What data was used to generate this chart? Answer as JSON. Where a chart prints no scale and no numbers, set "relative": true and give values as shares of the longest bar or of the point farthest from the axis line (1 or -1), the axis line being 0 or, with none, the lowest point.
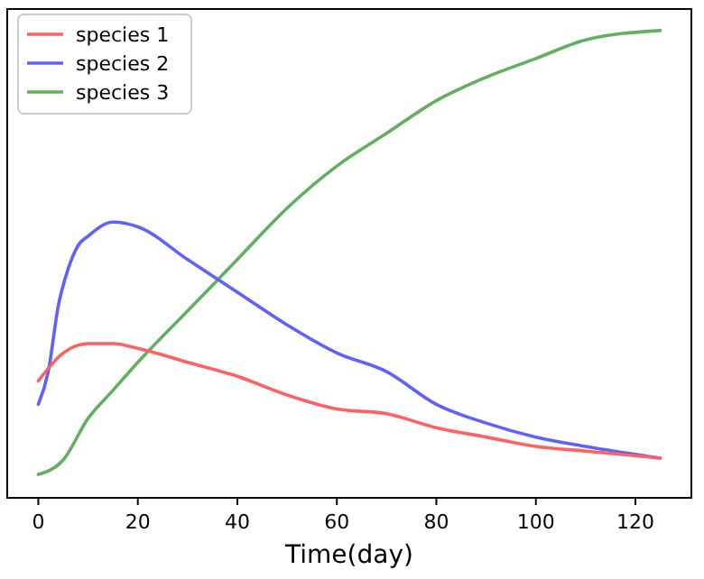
{
  "chart_data": {
    "type": "line",
    "xlabel": "Time(day)",
    "relative": true,
    "tick_labels": "x",
    "legend": "top left",
    "grid": false,
    "xlim": [
      -6.25,
      131.25
    ],
    "xticks": [
      0,
      20,
      40,
      60,
      80,
      100,
      120
    ],
    "series": [
      {
        "name": "species 1",
        "color": "#ff6060",
        "x": [
          0,
          5,
          10,
          15,
          20,
          30,
          40,
          50,
          60,
          70,
          80,
          90,
          100,
          110,
          125
        ],
        "values": [
          0.25,
          0.31,
          0.33,
          0.33,
          0.32,
          0.29,
          0.26,
          0.22,
          0.19,
          0.18,
          0.15,
          0.13,
          0.11,
          0.1,
          0.085
        ]
      },
      {
        "name": "species 2",
        "color": "#6060ff",
        "x": [
          0,
          2,
          4,
          6,
          8,
          10,
          15,
          20,
          30,
          40,
          50,
          60,
          70,
          80,
          90,
          100,
          110,
          125
        ],
        "values": [
          0.2,
          0.27,
          0.41,
          0.49,
          0.54,
          0.56,
          0.59,
          0.58,
          0.51,
          0.44,
          0.37,
          0.31,
          0.27,
          0.2,
          0.16,
          0.13,
          0.11,
          0.085
        ]
      },
      {
        "name": "species 3",
        "color": "#60b060",
        "x": [
          0,
          5,
          10,
          15,
          20,
          30,
          40,
          50,
          60,
          70,
          80,
          90,
          100,
          110,
          125
        ],
        "values": [
          0.05,
          0.081,
          0.17,
          0.23,
          0.29,
          0.4,
          0.51,
          0.62,
          0.71,
          0.78,
          0.85,
          0.9,
          0.94,
          0.98,
          1
        ]
      }
    ]
  }
}
